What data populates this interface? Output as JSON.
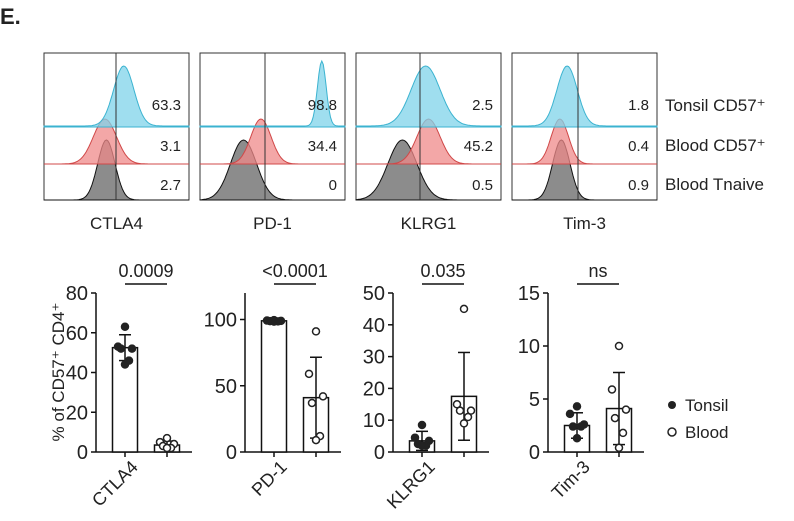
{
  "panel_label": "E.",
  "histograms": {
    "rows": [
      "Tonsil CD57⁺",
      "Blood CD57⁺",
      "Blood Tnaive"
    ],
    "row_colors": [
      "#7fd3ea",
      "#ef8a8a",
      "#808080"
    ],
    "panels": [
      {
        "marker": "CTLA4",
        "percents": [
          "63.3",
          "3.1",
          "2.7"
        ]
      },
      {
        "marker": "PD-1",
        "percents": [
          "98.8",
          "34.4",
          "0"
        ]
      },
      {
        "marker": "KLRG1",
        "percents": [
          "2.5",
          "45.2",
          "0.5"
        ]
      },
      {
        "marker": "Tim-3",
        "percents": [
          "1.8",
          "0.4",
          "0.9"
        ]
      }
    ]
  },
  "chart_data": [
    {
      "type": "bar",
      "title": "0.0009",
      "category": "CTLA4",
      "ylabel": "% of CD57⁺ CD4⁺",
      "ylim": [
        0,
        80
      ],
      "yticks": [
        0,
        20,
        40,
        60,
        80
      ],
      "series": [
        {
          "name": "Tonsil",
          "mean": 52.5,
          "sd": 6.5,
          "points": [
            63,
            53,
            52,
            52,
            46,
            44
          ]
        },
        {
          "name": "Blood",
          "mean": 3.5,
          "sd": 2,
          "points": [
            7,
            5,
            4,
            3,
            2,
            2
          ]
        }
      ]
    },
    {
      "type": "bar",
      "title": "<0.0001",
      "category": "PD-1",
      "ylabel": "",
      "ylim": [
        0,
        120
      ],
      "yticks": [
        0,
        50,
        100
      ],
      "series": [
        {
          "name": "Tonsil",
          "mean": 99,
          "sd": 0.5,
          "points": [
            99.5,
            99.2,
            99,
            98.8,
            98.6,
            98.4
          ]
        },
        {
          "name": "Blood",
          "mean": 41,
          "sd": 30.5,
          "points": [
            91,
            59,
            42,
            37,
            12,
            9
          ]
        }
      ]
    },
    {
      "type": "bar",
      "title": "0.035",
      "category": "KLRG1",
      "ylabel": "",
      "ylim": [
        0,
        50
      ],
      "yticks": [
        0,
        10,
        20,
        30,
        40,
        50
      ],
      "series": [
        {
          "name": "Tonsil",
          "mean": 3.5,
          "sd": 3,
          "points": [
            8.5,
            4.5,
            3.5,
            2.5,
            2,
            2
          ]
        },
        {
          "name": "Blood",
          "mean": 17.5,
          "sd": 13.8,
          "points": [
            45,
            15,
            13,
            13,
            11,
            9
          ]
        }
      ]
    },
    {
      "type": "bar",
      "title": "ns",
      "category": "Tim-3",
      "ylabel": "",
      "ylim": [
        0,
        15
      ],
      "yticks": [
        0,
        5,
        10,
        15
      ],
      "series": [
        {
          "name": "Tonsil",
          "mean": 2.5,
          "sd": 1.2,
          "points": [
            4.3,
            3.6,
            2.6,
            2.4,
            2.4,
            1.3
          ]
        },
        {
          "name": "Blood",
          "mean": 4.1,
          "sd": 3.4,
          "points": [
            10,
            5.9,
            4,
            3.2,
            1.8,
            0.4
          ]
        }
      ]
    }
  ],
  "legend": {
    "items": [
      {
        "label": "Tonsil",
        "marker": "filled-circle"
      },
      {
        "label": "Blood",
        "marker": "open-circle"
      }
    ],
    "placement": "right"
  }
}
